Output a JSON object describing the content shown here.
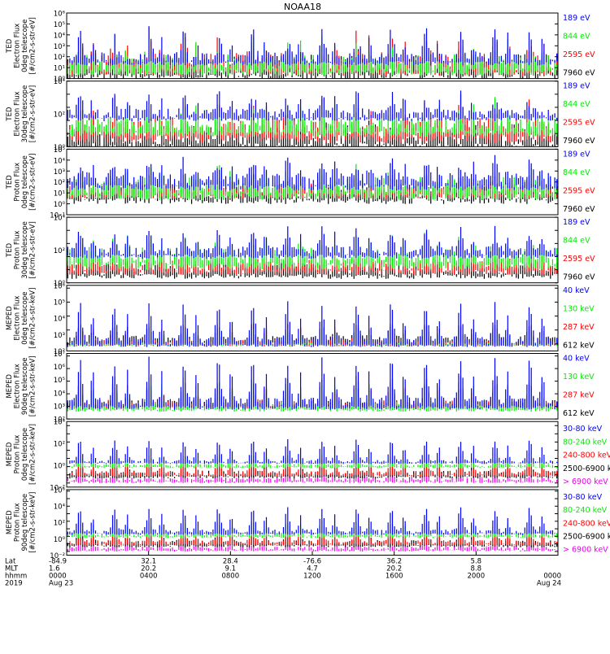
{
  "chart_data": {
    "type": "line",
    "title": "NOAA18",
    "panels": [
      {
        "ylabel": [
          "TED",
          "Electron Flux",
          "0deg telescope",
          "[#/cm2-s-str-eV]"
        ],
        "yticks": [
          "10⁰",
          "10¹",
          "10²",
          "10³",
          "10⁴",
          "10⁵",
          "10⁶"
        ],
        "ylim_log10": [
          0,
          6
        ],
        "series": [
          {
            "name": "7960 eV",
            "color": "#000000",
            "level": 1.2,
            "spread": 1.0,
            "burst": 1.0,
            "bursty": true
          },
          {
            "name": "2595 eV",
            "color": "#ff0000",
            "level": 1.5,
            "spread": 0.9,
            "burst": 2.4,
            "bursty": true
          },
          {
            "name": "844 eV",
            "color": "#00ee00",
            "level": 1.4,
            "spread": 0.8,
            "burst": 2.0,
            "bursty": true
          },
          {
            "name": "189 eV",
            "color": "#0000ff",
            "level": 1.9,
            "spread": 0.5,
            "burst": 2.6,
            "bursty": true
          }
        ]
      },
      {
        "ylabel": [
          "TED",
          "Electron Flux",
          "30deg telescope",
          "[#/cm2-s-str-eV]"
        ],
        "yticks": [
          "10⁰",
          "10²",
          "10⁴"
        ],
        "ylim_log10": [
          0,
          5
        ],
        "series": [
          {
            "name": "7960 eV",
            "color": "#000000",
            "level": 0.8,
            "spread": 0.9,
            "burst": 1.2,
            "bursty": true
          },
          {
            "name": "2595 eV",
            "color": "#ff0000",
            "level": 1.4,
            "spread": 0.8,
            "burst": 1.8,
            "bursty": true
          },
          {
            "name": "844 eV",
            "color": "#00ee00",
            "level": 1.6,
            "spread": 0.6,
            "burst": 1.6,
            "bursty": true
          },
          {
            "name": "189 eV",
            "color": "#0000ff",
            "level": 2.5,
            "spread": 0.4,
            "burst": 1.6,
            "bursty": true
          }
        ]
      },
      {
        "ylabel": [
          "TED",
          "Proton Flux",
          "0deg telescope",
          "[#/cm2-s-str-eV]"
        ],
        "yticks": [
          "10⁻¹",
          "10⁰",
          "10¹",
          "10²",
          "10³",
          "10⁴",
          "10⁵"
        ],
        "ylim_log10": [
          -1,
          5
        ],
        "series": [
          {
            "name": "7960 eV",
            "color": "#000000",
            "level": 1.1,
            "spread": 0.8,
            "burst": 1.0,
            "bursty": false
          },
          {
            "name": "2595 eV",
            "color": "#ff0000",
            "level": 1.3,
            "spread": 0.6,
            "burst": 0.8,
            "bursty": false
          },
          {
            "name": "844 eV",
            "color": "#00ee00",
            "level": 1.6,
            "spread": 0.9,
            "burst": 1.2,
            "bursty": false
          },
          {
            "name": "189 eV",
            "color": "#0000ff",
            "level": 2.2,
            "spread": 0.7,
            "burst": 1.6,
            "bursty": false
          }
        ]
      },
      {
        "ylabel": [
          "TED",
          "Proton Flux",
          "30deg telescope",
          "[#/cm2-s-str-eV]"
        ],
        "yticks": [
          "10⁰",
          "10²",
          "10⁴"
        ],
        "ylim_log10": [
          0,
          5
        ],
        "series": [
          {
            "name": "7960 eV",
            "color": "#000000",
            "level": 1.0,
            "spread": 0.5,
            "burst": 0.6,
            "bursty": false
          },
          {
            "name": "2595 eV",
            "color": "#ff0000",
            "level": 1.3,
            "spread": 0.5,
            "burst": 0.8,
            "bursty": false
          },
          {
            "name": "844 eV",
            "color": "#00ee00",
            "level": 2.0,
            "spread": 0.7,
            "burst": 1.4,
            "bursty": false
          },
          {
            "name": "189 eV",
            "color": "#0000ff",
            "level": 2.4,
            "spread": 0.4,
            "burst": 1.6,
            "bursty": false
          }
        ]
      },
      {
        "ylabel": [
          "MEPED",
          "Electron Flux",
          "0deg telescope",
          "[#/cm2-s-str-keV]"
        ],
        "yticks": [
          "10²",
          "10³",
          "10⁴",
          "10⁵",
          "10⁶"
        ],
        "ylim_log10": [
          1.5,
          6.2
        ],
        "series": [
          {
            "name": "612 keV",
            "color": "#000000",
            "level": 2.3,
            "spread": 0.3,
            "burst": 1.0,
            "bursty": false
          },
          {
            "name": "287 keV",
            "color": "#ff0000",
            "level": 2.1,
            "spread": 0.2,
            "burst": 1.4,
            "bursty": false
          },
          {
            "name": "130 keV",
            "color": "#00ee00",
            "level": 2.0,
            "spread": 0.1,
            "burst": 1.2,
            "bursty": false
          },
          {
            "name": "40 keV",
            "color": "#0000ff",
            "level": 2.2,
            "spread": 0.3,
            "burst": 2.6,
            "bursty": false
          }
        ]
      },
      {
        "ylabel": [
          "MEPED",
          "Electron Flux",
          "90deg telescope",
          "[#/cm2-s-str-keV]"
        ],
        "yticks": [
          "10²",
          "10³",
          "10⁴",
          "10⁵",
          "10⁶",
          "10⁷"
        ],
        "ylim_log10": [
          2,
          7.2
        ],
        "series": [
          {
            "name": "612 keV",
            "color": "#000000",
            "level": 3.2,
            "spread": 0.3,
            "burst": 1.4,
            "bursty": false
          },
          {
            "name": "287 keV",
            "color": "#ff0000",
            "level": 3.2,
            "spread": 0.3,
            "burst": 2.0,
            "bursty": false
          },
          {
            "name": "130 keV",
            "color": "#00ee00",
            "level": 3.0,
            "spread": 0.3,
            "burst": 2.2,
            "bursty": false
          },
          {
            "name": "40 keV",
            "color": "#0000ff",
            "level": 3.3,
            "spread": 0.4,
            "burst": 3.3,
            "bursty": false
          }
        ]
      },
      {
        "ylabel": [
          "MEPED",
          "Proton Flux",
          "0deg telescope",
          "[#/cm2-s-str-keV]"
        ],
        "yticks": [
          "10⁻²",
          "10⁰",
          "10²",
          "10⁴"
        ],
        "ylim_log10": [
          -2.5,
          5.5
        ],
        "series": [
          {
            "name": "> 6900 keV",
            "color": "#ee00ee",
            "level": -1.6,
            "spread": 0.3,
            "burst": 0.6,
            "bursty": false
          },
          {
            "name": "2500-6900 keV",
            "color": "#000000",
            "level": -0.9,
            "spread": 0.4,
            "burst": 1.4,
            "bursty": false
          },
          {
            "name": "240-800 keV",
            "color": "#ff0000",
            "level": -0.8,
            "spread": 0.3,
            "burst": 1.6,
            "bursty": false
          },
          {
            "name": "80-240 keV",
            "color": "#00ee00",
            "level": 0.1,
            "spread": 0.2,
            "burst": 1.4,
            "bursty": false
          },
          {
            "name": "30-80 keV",
            "color": "#0000ff",
            "level": 0.6,
            "spread": 0.2,
            "burst": 2.6,
            "bursty": false
          }
        ]
      },
      {
        "ylabel": [
          "MEPED",
          "Proton Flux",
          "90deg telescope",
          "[#/cm2-s-str-keV]"
        ],
        "yticks": [
          "10⁻²",
          "10⁰",
          "10²",
          "10⁴",
          "10⁶"
        ],
        "ylim_log10": [
          -2.5,
          6.2
        ],
        "series": [
          {
            "name": "> 6900 keV",
            "color": "#ee00ee",
            "level": -1.6,
            "spread": 0.3,
            "burst": 0.6,
            "bursty": false
          },
          {
            "name": "2500-6900 keV",
            "color": "#000000",
            "level": -0.9,
            "spread": 0.4,
            "burst": 1.4,
            "bursty": false
          },
          {
            "name": "240-800 keV",
            "color": "#ff0000",
            "level": -0.8,
            "spread": 0.3,
            "burst": 1.6,
            "bursty": false
          },
          {
            "name": "80-240 keV",
            "color": "#00ee00",
            "level": 0.2,
            "spread": 0.3,
            "burst": 1.8,
            "bursty": false
          },
          {
            "name": "30-80 keV",
            "color": "#0000ff",
            "level": 0.6,
            "spread": 0.3,
            "burst": 3.0,
            "bursty": false
          }
        ]
      }
    ],
    "x_axis": {
      "row_labels": [
        "Lat",
        "MLT",
        "hhmm",
        "2019"
      ],
      "ticks": [
        {
          "lat": "-84.9",
          "mlt": "1.6",
          "hhmm": "0000",
          "date": "Aug 23"
        },
        {
          "lat": "32.1",
          "mlt": "20.2",
          "hhmm": "0400",
          "date": ""
        },
        {
          "lat": "28.4",
          "mlt": "9.1",
          "hhmm": "0800",
          "date": ""
        },
        {
          "lat": "-76.6",
          "mlt": "4.7",
          "hhmm": "1200",
          "date": ""
        },
        {
          "lat": "36.2",
          "mlt": "20.2",
          "hhmm": "1600",
          "date": ""
        },
        {
          "lat": "5.8",
          "mlt": "8.8",
          "hhmm": "2000",
          "date": ""
        },
        {
          "lat": "",
          "mlt": "",
          "hhmm": "0000",
          "date": "Aug 24"
        }
      ]
    },
    "n_samples": 230,
    "n_orbits": 14.2
  }
}
